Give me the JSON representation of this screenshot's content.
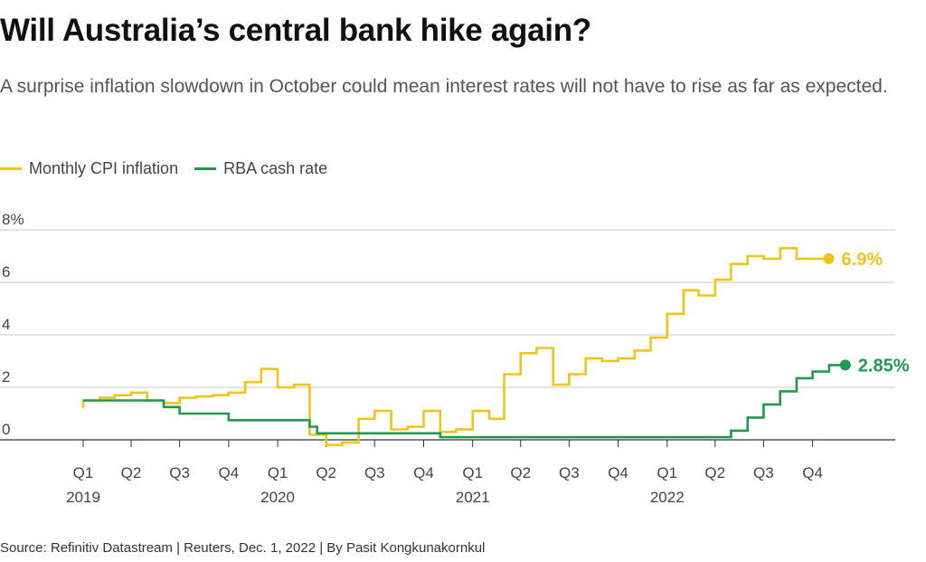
{
  "title": "Will Australia’s central bank hike again?",
  "subtitle": "A surprise inflation slowdown in October could mean interest rates will not have to rise as far as expected.",
  "source": "Source: Refinitiv Datastream | Reuters, Dec. 1, 2022 | By Pasit Kongkunakornkul",
  "colors": {
    "cpi": "#f0c419",
    "cash": "#1f9a4e",
    "grid": "#c8c8c8",
    "axis": "#333333"
  },
  "chart_data": {
    "type": "line",
    "title": "Will Australia’s central bank hike again?",
    "ylim": [
      0,
      8
    ],
    "y_ticks": [
      {
        "value": 8,
        "label": "8%"
      },
      {
        "value": 6,
        "label": "6"
      },
      {
        "value": 4,
        "label": "4"
      },
      {
        "value": 2,
        "label": "2"
      },
      {
        "value": 0,
        "label": "0"
      }
    ],
    "x_ticks": [
      {
        "date": "2019-01-01",
        "label": "Q1",
        "year": "2019"
      },
      {
        "date": "2019-04-01",
        "label": "Q2"
      },
      {
        "date": "2019-07-01",
        "label": "Q3"
      },
      {
        "date": "2019-10-01",
        "label": "Q4"
      },
      {
        "date": "2020-01-01",
        "label": "Q1",
        "year": "2020"
      },
      {
        "date": "2020-04-01",
        "label": "Q2"
      },
      {
        "date": "2020-07-01",
        "label": "Q3"
      },
      {
        "date": "2020-10-01",
        "label": "Q4"
      },
      {
        "date": "2021-01-01",
        "label": "Q1",
        "year": "2021"
      },
      {
        "date": "2021-04-01",
        "label": "Q2"
      },
      {
        "date": "2021-07-01",
        "label": "Q3"
      },
      {
        "date": "2021-10-01",
        "label": "Q4"
      },
      {
        "date": "2022-01-01",
        "label": "Q1",
        "year": "2022"
      },
      {
        "date": "2022-04-01",
        "label": "Q2"
      },
      {
        "date": "2022-07-01",
        "label": "Q3"
      },
      {
        "date": "2022-10-01",
        "label": "Q4"
      }
    ],
    "grid": true,
    "legend_position": "top-left",
    "series": [
      {
        "name": "Monthly CPI inflation",
        "color_key": "cpi",
        "end_label": "6.9%",
        "step": true,
        "points": [
          [
            "2019-01-01",
            1.2
          ],
          [
            "2019-01-01",
            1.5
          ],
          [
            "2019-02-01",
            1.6
          ],
          [
            "2019-03-01",
            1.7
          ],
          [
            "2019-04-01",
            1.8
          ],
          [
            "2019-05-01",
            1.5
          ],
          [
            "2019-06-01",
            1.4
          ],
          [
            "2019-07-01",
            1.6
          ],
          [
            "2019-08-01",
            1.65
          ],
          [
            "2019-09-01",
            1.7
          ],
          [
            "2019-10-01",
            1.8
          ],
          [
            "2019-11-01",
            2.2
          ],
          [
            "2019-12-01",
            2.7
          ],
          [
            "2020-01-01",
            2.0
          ],
          [
            "2020-02-01",
            2.1
          ],
          [
            "2020-03-01",
            0.2
          ],
          [
            "2020-04-01",
            -0.2
          ],
          [
            "2020-05-01",
            -0.1
          ],
          [
            "2020-06-01",
            0.8
          ],
          [
            "2020-07-01",
            1.1
          ],
          [
            "2020-08-01",
            0.4
          ],
          [
            "2020-09-01",
            0.5
          ],
          [
            "2020-10-01",
            1.1
          ],
          [
            "2020-11-01",
            0.3
          ],
          [
            "2020-12-01",
            0.4
          ],
          [
            "2021-01-01",
            1.1
          ],
          [
            "2021-02-01",
            0.8
          ],
          [
            "2021-03-01",
            2.5
          ],
          [
            "2021-04-01",
            3.3
          ],
          [
            "2021-05-01",
            3.5
          ],
          [
            "2021-06-01",
            2.1
          ],
          [
            "2021-07-01",
            2.5
          ],
          [
            "2021-08-01",
            3.1
          ],
          [
            "2021-09-01",
            3.0
          ],
          [
            "2021-10-01",
            3.1
          ],
          [
            "2021-11-01",
            3.4
          ],
          [
            "2021-12-01",
            3.9
          ],
          [
            "2022-01-01",
            4.8
          ],
          [
            "2022-02-01",
            5.7
          ],
          [
            "2022-03-01",
            5.5
          ],
          [
            "2022-04-01",
            6.1
          ],
          [
            "2022-05-01",
            6.7
          ],
          [
            "2022-06-01",
            7.0
          ],
          [
            "2022-07-01",
            6.9
          ],
          [
            "2022-08-01",
            7.3
          ],
          [
            "2022-09-01",
            6.9
          ],
          [
            "2022-10-01",
            6.9
          ]
        ]
      },
      {
        "name": "RBA cash rate",
        "color_key": "cash",
        "end_label": "2.85%",
        "step": true,
        "points": [
          [
            "2019-01-01",
            1.5
          ],
          [
            "2019-05-01",
            1.5
          ],
          [
            "2019-06-01",
            1.25
          ],
          [
            "2019-07-01",
            1.0
          ],
          [
            "2019-10-01",
            0.75
          ],
          [
            "2020-03-01",
            0.5
          ],
          [
            "2020-03-15",
            0.25
          ],
          [
            "2020-11-01",
            0.1
          ],
          [
            "2022-05-01",
            0.35
          ],
          [
            "2022-06-01",
            0.85
          ],
          [
            "2022-07-01",
            1.35
          ],
          [
            "2022-08-01",
            1.85
          ],
          [
            "2022-09-01",
            2.35
          ],
          [
            "2022-10-01",
            2.6
          ],
          [
            "2022-11-01",
            2.85
          ]
        ]
      }
    ]
  }
}
